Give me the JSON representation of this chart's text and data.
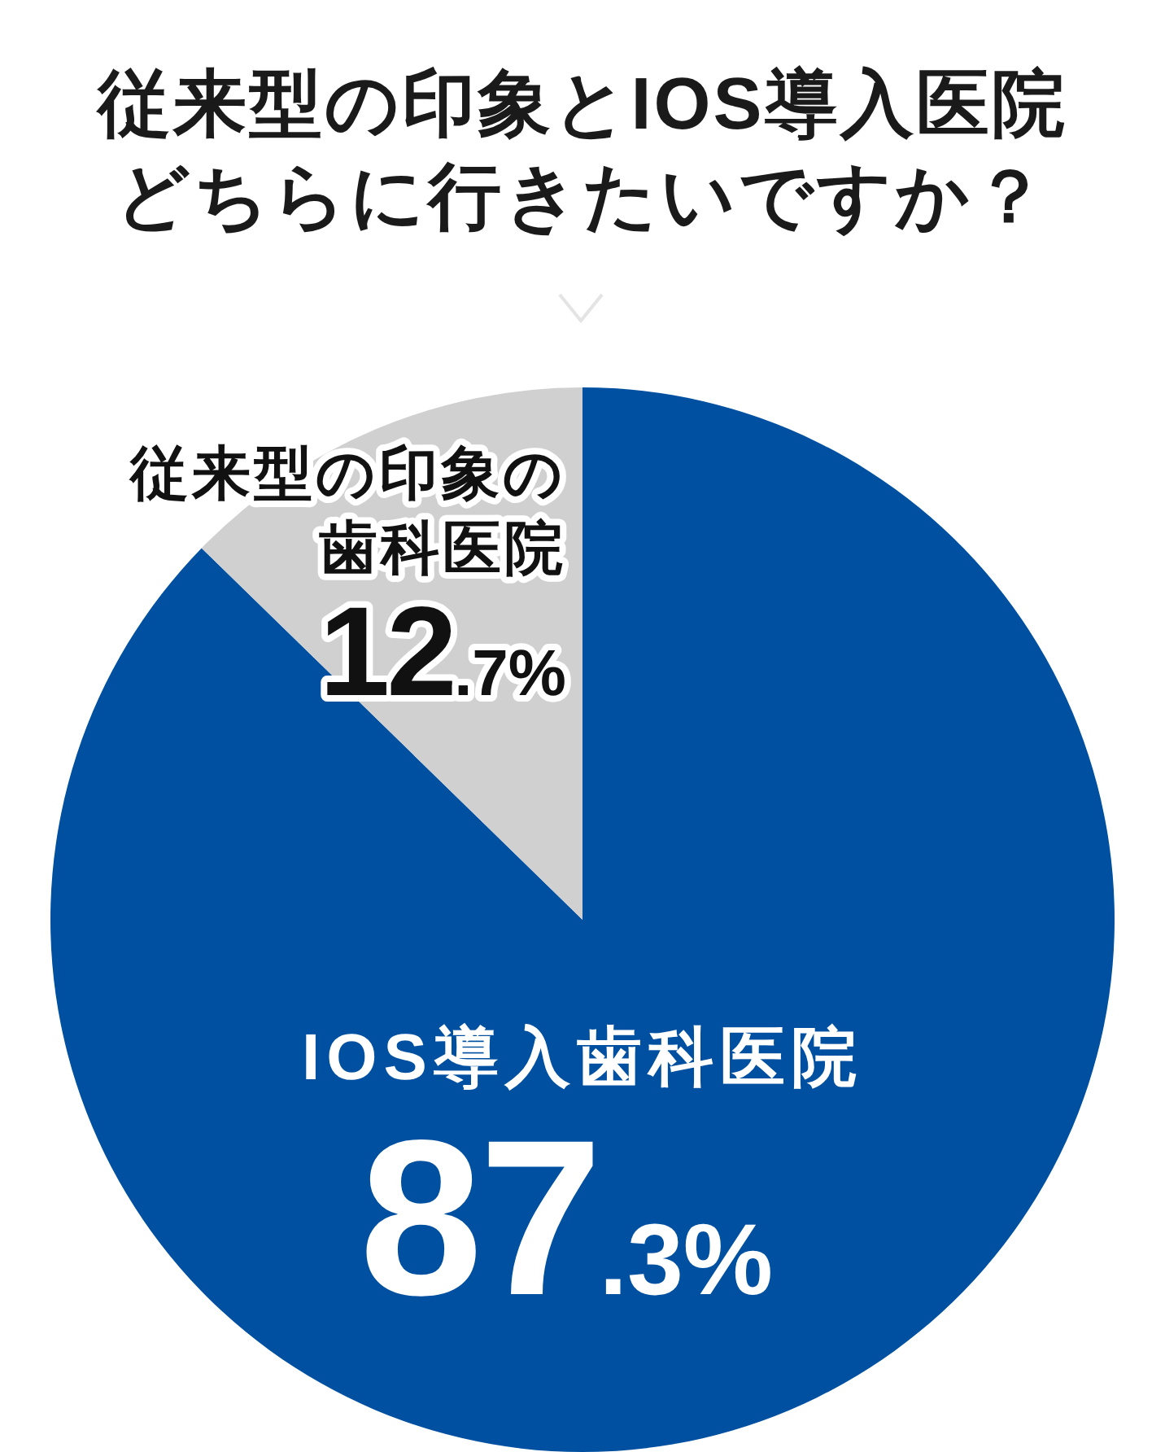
{
  "chart_data": {
    "type": "pie",
    "title": "従来型の印象とIOS導入医院",
    "subtitle": "どちらに行きたいですか？",
    "categories": [
      "IOS導入歯科医院",
      "従来型の印象の歯科医院"
    ],
    "values": [
      87.3,
      12.7
    ],
    "colors": [
      "#0050a2",
      "#d0d0d0"
    ],
    "value_labels": [
      "87.3%",
      "12.7%"
    ]
  }
}
